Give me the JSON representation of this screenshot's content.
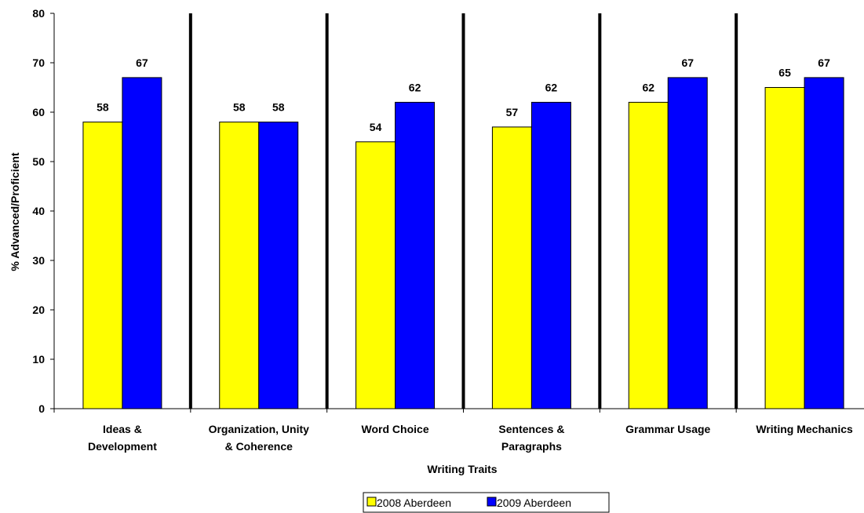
{
  "chart_data": {
    "type": "bar",
    "categories": [
      [
        "Ideas &",
        "Development"
      ],
      [
        "Organization, Unity",
        "& Coherence"
      ],
      [
        "Word Choice"
      ],
      [
        "Sentences &",
        "Paragraphs"
      ],
      [
        "Grammar Usage"
      ],
      [
        "Writing Mechanics"
      ]
    ],
    "series": [
      {
        "name": "2008 Aberdeen",
        "color": "#ffff00",
        "values": [
          58,
          58,
          54,
          57,
          62,
          65
        ]
      },
      {
        "name": "2009 Aberdeen",
        "color": "#0000ff",
        "values": [
          67,
          58,
          62,
          62,
          67,
          67
        ]
      }
    ],
    "xlabel": "Writing Traits",
    "ylabel": "% Advanced/Proficient",
    "ylim": [
      0,
      80
    ],
    "yticks": [
      0,
      10,
      20,
      30,
      40,
      50,
      60,
      70,
      80
    ],
    "grid": false,
    "category_separators": true,
    "legend_position": "bottom-center"
  }
}
